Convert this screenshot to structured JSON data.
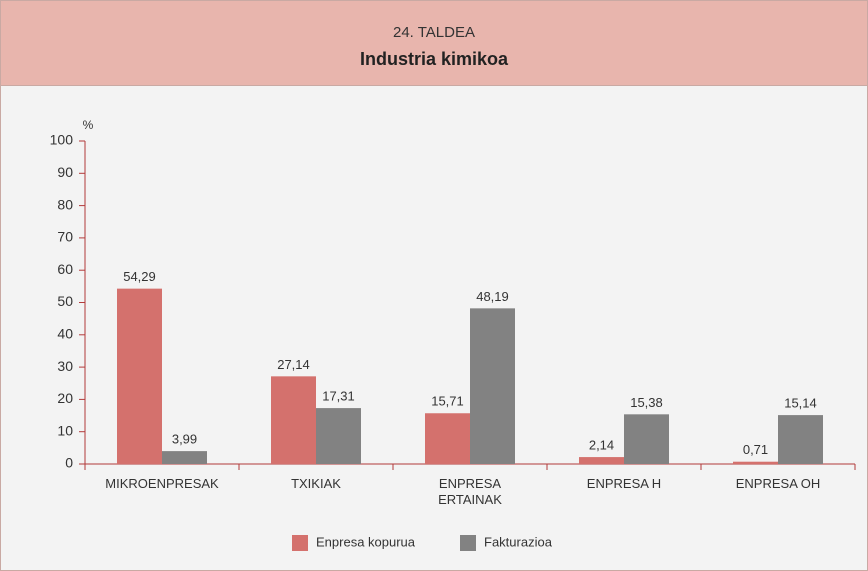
{
  "chart_data": {
    "type": "bar",
    "subtitle": "24. TALDEA",
    "title": "Industria kimikoa",
    "y_unit": "%",
    "categories": [
      "MIKROENPRESAK",
      "TXIKIAK",
      "ENPRESA ERTAINAK",
      "ENPRESA H",
      "ENPRESA OH"
    ],
    "series": [
      {
        "name": "Enpresa kopurua",
        "color": "#d4716d",
        "values": [
          54.29,
          27.14,
          15.71,
          2.14,
          0.71
        ],
        "value_labels": [
          "54,29",
          "27,14",
          "15,71",
          "2,14",
          "0,71"
        ]
      },
      {
        "name": "Fakturazioa",
        "color": "#828282",
        "values": [
          3.99,
          17.31,
          48.19,
          15.38,
          15.14
        ],
        "value_labels": [
          "3,99",
          "17,31",
          "48,19",
          "15,38",
          "15,14"
        ]
      }
    ],
    "ylim": [
      0,
      100
    ],
    "yticks": [
      0,
      10,
      20,
      30,
      40,
      50,
      60,
      70,
      80,
      90,
      100
    ],
    "grid": false,
    "legend": "bottom"
  }
}
